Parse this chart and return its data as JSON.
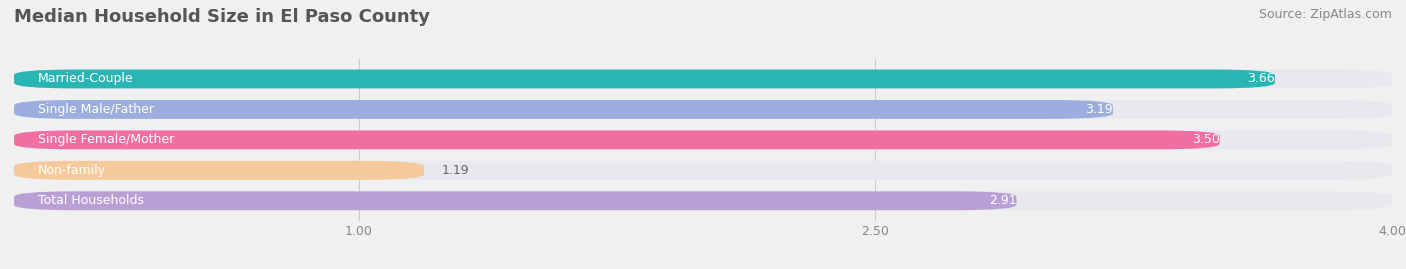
{
  "title": "Median Household Size in El Paso County",
  "source": "Source: ZipAtlas.com",
  "categories": [
    "Married-Couple",
    "Single Male/Father",
    "Single Female/Mother",
    "Non-family",
    "Total Households"
  ],
  "values": [
    3.66,
    3.19,
    3.5,
    1.19,
    2.91
  ],
  "bar_colors": [
    "#2ab5b5",
    "#9baedd",
    "#f06fa0",
    "#f5c99a",
    "#b8a0d4"
  ],
  "xlim": [
    0,
    4.0
  ],
  "xticks": [
    1.0,
    2.5,
    4.0
  ],
  "background_color": "#f0f0f0",
  "bar_bg_color": "#e8e8ee",
  "title_fontsize": 13,
  "source_fontsize": 9,
  "label_fontsize": 9,
  "value_fontsize": 9
}
